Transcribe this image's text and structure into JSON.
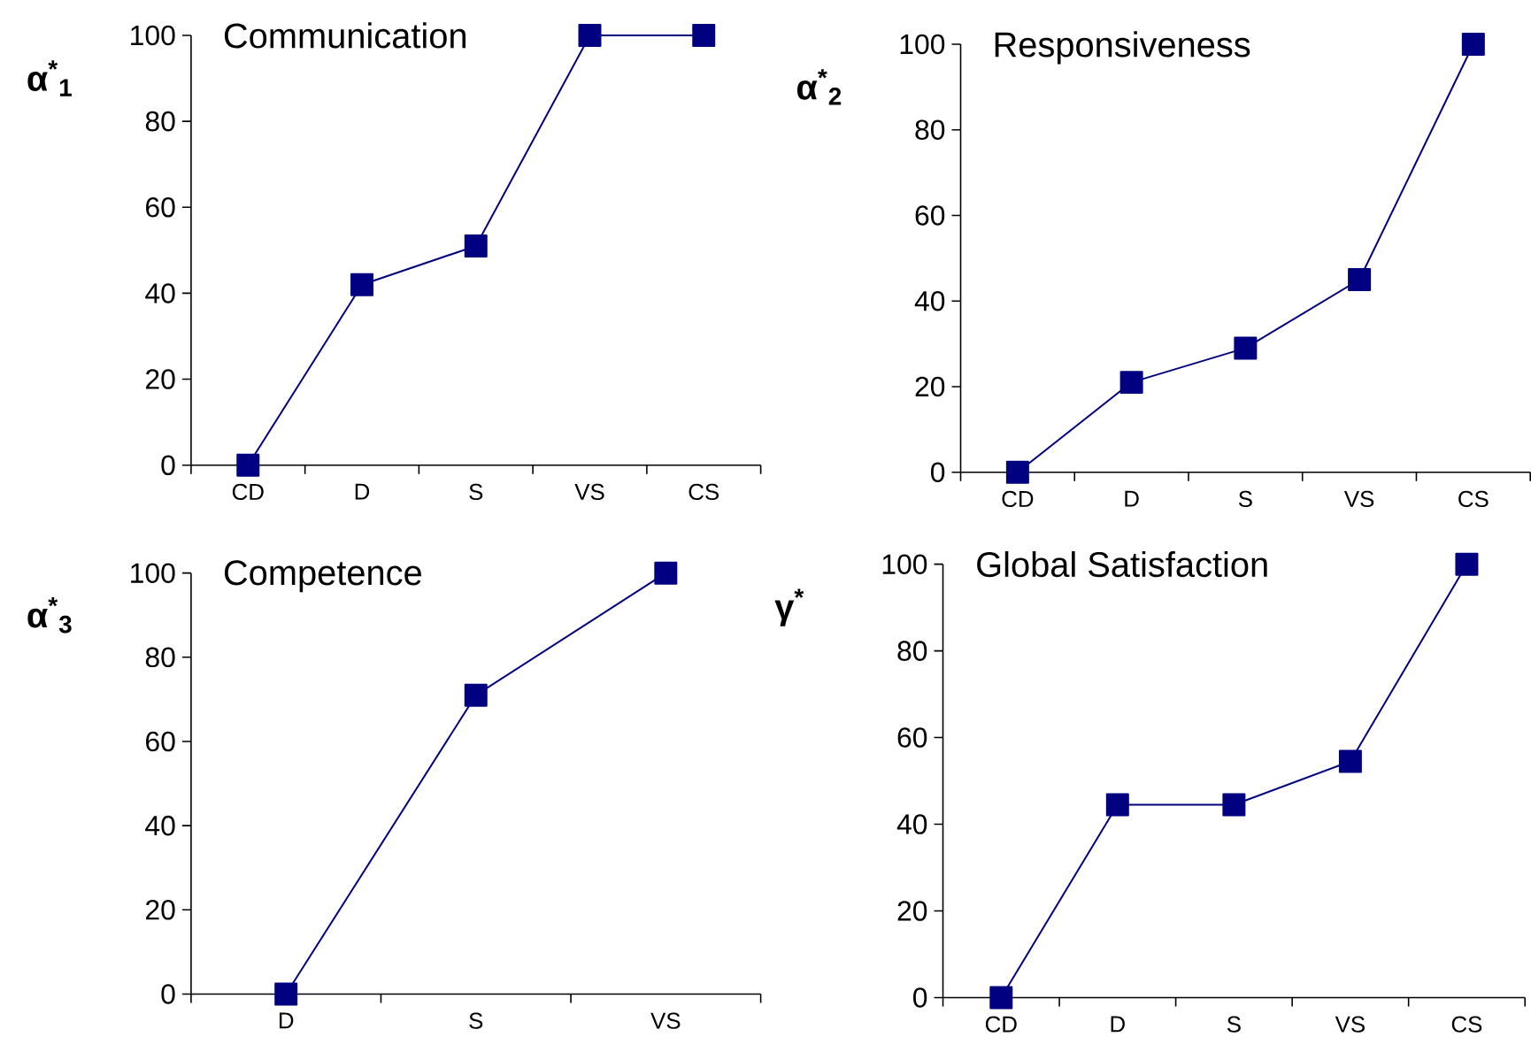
{
  "chart_data": [
    {
      "type": "line",
      "title": "Communication",
      "ylabel": "α$^{*}$$_{1}$",
      "categories": [
        "CD",
        "D",
        "S",
        "VS",
        "CS"
      ],
      "values": [
        0,
        42,
        51,
        100,
        100
      ],
      "color": "#000080",
      "marker": "square",
      "ylim": [
        0,
        100
      ],
      "yticks": [
        0,
        20,
        40,
        60,
        80,
        100
      ]
    },
    {
      "type": "line",
      "title": "Responsiveness",
      "ylabel": "α$^{*}$$_{2}$",
      "categories": [
        "CD",
        "D",
        "S",
        "VS",
        "CS"
      ],
      "values": [
        0,
        21,
        29,
        45,
        100
      ],
      "color": "#000080",
      "marker": "square",
      "ylim": [
        0,
        100
      ],
      "yticks": [
        0,
        20,
        40,
        60,
        80,
        100
      ]
    },
    {
      "type": "line",
      "title": "Competence",
      "ylabel": "α$^{*}$$_{3}$",
      "categories": [
        "D",
        "S",
        "VS"
      ],
      "values": [
        0,
        71,
        100
      ],
      "color": "#000080",
      "marker": "square",
      "ylim": [
        0,
        100
      ],
      "yticks": [
        0,
        20,
        40,
        60,
        80,
        100
      ]
    },
    {
      "type": "line",
      "title": "Global Satisfaction",
      "ylabel": "γ$^{*}$",
      "categories": [
        "CD",
        "D",
        "S",
        "VS",
        "CS"
      ],
      "values": [
        0,
        44.5,
        44.5,
        54.5,
        100
      ],
      "color": "#000080",
      "marker": "square",
      "ylim": [
        0,
        100
      ],
      "yticks": [
        0,
        20,
        40,
        60,
        80,
        100
      ]
    }
  ]
}
